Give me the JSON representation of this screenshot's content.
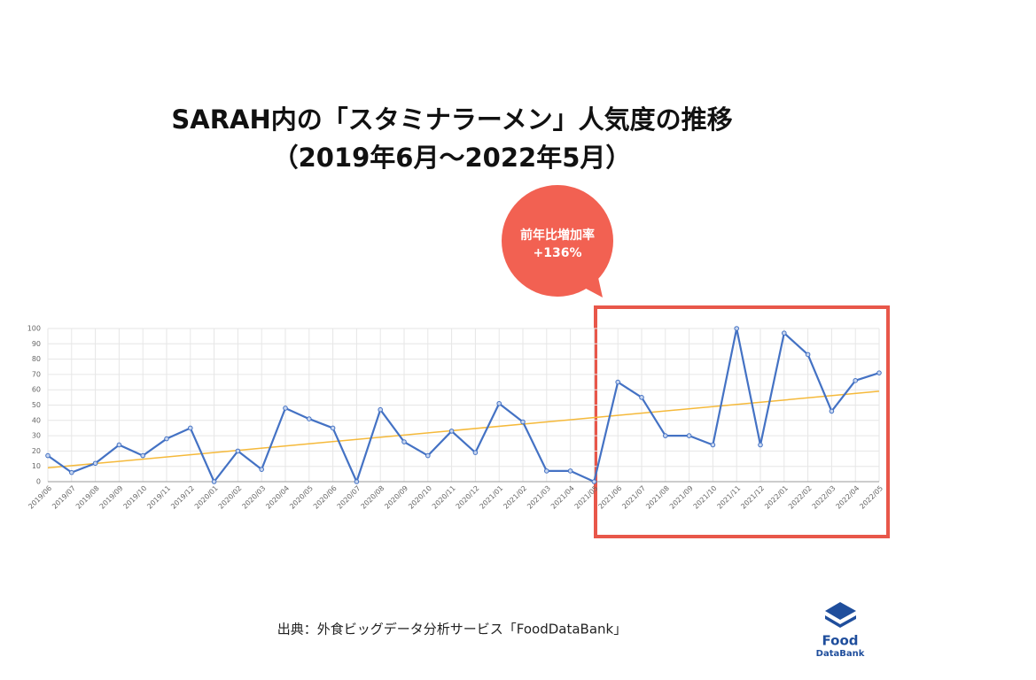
{
  "chart_data": {
    "type": "line",
    "title": [
      "SARAH内の「スタミナラーメン」人気度の推移",
      "（2019年6月〜2022年5月）"
    ],
    "categories": [
      "2019/06",
      "2019/07",
      "2019/08",
      "2019/09",
      "2019/10",
      "2019/11",
      "2019/12",
      "2020/01",
      "2020/02",
      "2020/03",
      "2020/04",
      "2020/05",
      "2020/06",
      "2020/07",
      "2020/08",
      "2020/09",
      "2020/10",
      "2020/11",
      "2020/12",
      "2021/01",
      "2021/02",
      "2021/03",
      "2021/04",
      "2021/05",
      "2021/06",
      "2021/07",
      "2021/08",
      "2021/09",
      "2021/10",
      "2021/11",
      "2021/12",
      "2022/01",
      "2022/02",
      "2022/03",
      "2022/04",
      "2022/05"
    ],
    "series": [
      {
        "color": "#4472c4",
        "values": [
          17,
          6,
          12,
          24,
          17,
          28,
          35,
          0,
          20,
          8,
          48,
          41,
          35,
          0,
          47,
          26,
          17,
          33,
          19,
          51,
          39,
          7,
          7,
          0,
          65,
          55,
          30,
          30,
          24,
          100,
          24,
          97,
          83,
          46,
          66,
          71
        ]
      }
    ],
    "trendline": {
      "color": "#f5b93a",
      "values": [
        9,
        59
      ]
    },
    "ylim": [
      0,
      100
    ],
    "yticks": [
      0,
      10,
      20,
      30,
      40,
      50,
      60,
      70,
      80,
      90,
      100
    ],
    "grid": true,
    "annotation": [
      "前年比増加率",
      "+136%"
    ],
    "source": "出典：外食ビッグデータ分析サービス「FoodDataBank」",
    "logo": [
      "Food",
      "DataBank"
    ]
  }
}
